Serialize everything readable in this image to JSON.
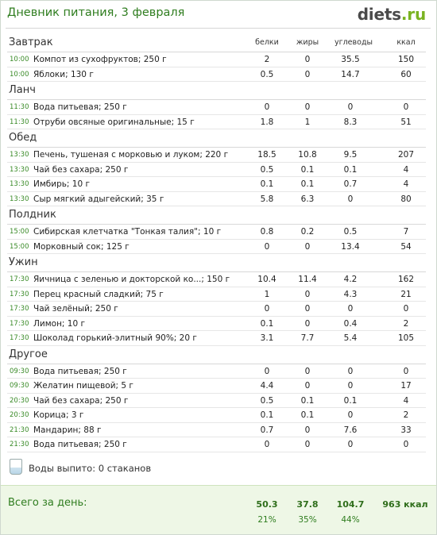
{
  "header": {
    "title": "Дневник питания, 3 февраля",
    "logo_main": "diets",
    "logo_tld": ".ru"
  },
  "columns": {
    "protein": "белки",
    "fat": "жиры",
    "carbs": "углеводы",
    "kcal": "ккал"
  },
  "sections": [
    {
      "title": "Завтрак",
      "show_columns": true,
      "rows": [
        {
          "time": "10:00",
          "name": "Компот из сухофруктов; 250 г",
          "protein": "2",
          "fat": "0",
          "carbs": "35.5",
          "kcal": "150"
        },
        {
          "time": "10:00",
          "name": "Яблоки; 130 г",
          "protein": "0.5",
          "fat": "0",
          "carbs": "14.7",
          "kcal": "60"
        }
      ]
    },
    {
      "title": "Ланч",
      "rows": [
        {
          "time": "11:30",
          "name": "Вода питьевая; 250 г",
          "protein": "0",
          "fat": "0",
          "carbs": "0",
          "kcal": "0"
        },
        {
          "time": "11:30",
          "name": "Отруби овсяные оригинальные; 15 г",
          "protein": "1.8",
          "fat": "1",
          "carbs": "8.3",
          "kcal": "51"
        }
      ]
    },
    {
      "title": "Обед",
      "rows": [
        {
          "time": "13:30",
          "name": "Печень, тушеная с морковью и луком; 220 г",
          "protein": "18.5",
          "fat": "10.8",
          "carbs": "9.5",
          "kcal": "207"
        },
        {
          "time": "13:30",
          "name": "Чай без сахара; 250 г",
          "protein": "0.5",
          "fat": "0.1",
          "carbs": "0.1",
          "kcal": "4"
        },
        {
          "time": "13:30",
          "name": "Имбирь; 10 г",
          "protein": "0.1",
          "fat": "0.1",
          "carbs": "0.7",
          "kcal": "4"
        },
        {
          "time": "13:30",
          "name": "Сыр мягкий адыгейский; 35 г",
          "protein": "5.8",
          "fat": "6.3",
          "carbs": "0",
          "kcal": "80"
        }
      ]
    },
    {
      "title": "Полдник",
      "rows": [
        {
          "time": "15:00",
          "name": "Сибирская клетчатка \"Тонкая талия\"; 10 г",
          "protein": "0.8",
          "fat": "0.2",
          "carbs": "0.5",
          "kcal": "7"
        },
        {
          "time": "15:00",
          "name": "Морковный сок; 125 г",
          "protein": "0",
          "fat": "0",
          "carbs": "13.4",
          "kcal": "54"
        }
      ]
    },
    {
      "title": "Ужин",
      "rows": [
        {
          "time": "17:30",
          "name": "Яичница с зеленью и докторской ко...; 150 г",
          "protein": "10.4",
          "fat": "11.4",
          "carbs": "4.2",
          "kcal": "162"
        },
        {
          "time": "17:30",
          "name": "Перец красный сладкий; 75 г",
          "protein": "1",
          "fat": "0",
          "carbs": "4.3",
          "kcal": "21"
        },
        {
          "time": "17:30",
          "name": "Чай зелёный; 250 г",
          "protein": "0",
          "fat": "0",
          "carbs": "0",
          "kcal": "0"
        },
        {
          "time": "17:30",
          "name": "Лимон; 10 г",
          "protein": "0.1",
          "fat": "0",
          "carbs": "0.4",
          "kcal": "2"
        },
        {
          "time": "17:30",
          "name": "Шоколад горький-элитный 90%; 20 г",
          "protein": "3.1",
          "fat": "7.7",
          "carbs": "5.4",
          "kcal": "105"
        }
      ]
    },
    {
      "title": "Другое",
      "rows": [
        {
          "time": "09:30",
          "name": "Вода питьевая; 250 г",
          "protein": "0",
          "fat": "0",
          "carbs": "0",
          "kcal": "0"
        },
        {
          "time": "09:30",
          "name": "Желатин пищевой; 5 г",
          "protein": "4.4",
          "fat": "0",
          "carbs": "0",
          "kcal": "17"
        },
        {
          "time": "20:30",
          "name": "Чай без сахара; 250 г",
          "protein": "0.5",
          "fat": "0.1",
          "carbs": "0.1",
          "kcal": "4"
        },
        {
          "time": "20:30",
          "name": "Корица; 3 г",
          "protein": "0.1",
          "fat": "0.1",
          "carbs": "0",
          "kcal": "2"
        },
        {
          "time": "21:30",
          "name": "Мандарин; 88 г",
          "protein": "0.7",
          "fat": "0",
          "carbs": "7.6",
          "kcal": "33"
        },
        {
          "time": "21:30",
          "name": "Вода питьевая; 250 г",
          "protein": "0",
          "fat": "0",
          "carbs": "0",
          "kcal": "0"
        }
      ]
    }
  ],
  "water": {
    "text": "Воды выпито: 0 стаканов",
    "icon": "water-glass-icon"
  },
  "totals": {
    "label": "Всего за день:",
    "protein": "50.3",
    "fat": "37.8",
    "carbs": "104.7",
    "kcal": "963 ккал",
    "protein_pct": "21%",
    "fat_pct": "35%",
    "carbs_pct": "44%"
  },
  "colors": {
    "accent": "#2f7d1f",
    "time": "#3a8b28",
    "totals_bg": "#eef7e6",
    "logo_tld": "#7ab321"
  }
}
